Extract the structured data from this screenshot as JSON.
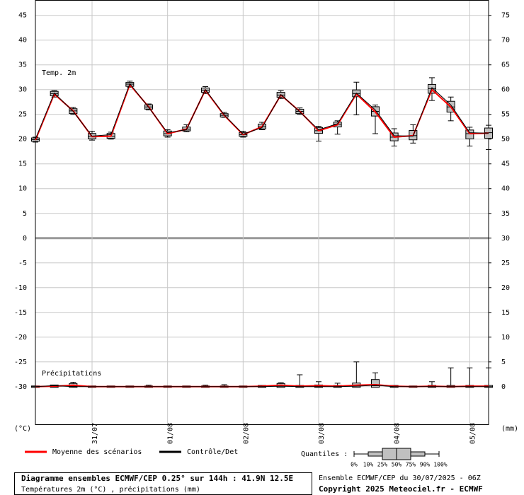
{
  "chart_data": {
    "type": "ensemble",
    "x": [
      0,
      6,
      12,
      18,
      24,
      30,
      36,
      42,
      48,
      54,
      60,
      66,
      72,
      78,
      84,
      90,
      96,
      102,
      108,
      114,
      120,
      126,
      132,
      138,
      144
    ],
    "xlim": [
      0,
      144
    ],
    "xticks": [
      {
        "value": 18,
        "label": "31/07"
      },
      {
        "value": 42,
        "label": "01/08"
      },
      {
        "value": 66,
        "label": "02/08"
      },
      {
        "value": 90,
        "label": "03/08"
      },
      {
        "value": 114,
        "label": "04/08"
      },
      {
        "value": 138,
        "label": "05/08"
      }
    ],
    "ylim": [
      -37.6,
      48.1
    ],
    "yticks": [
      45,
      40,
      35,
      30,
      25,
      20,
      15,
      10,
      5,
      0,
      -5,
      -10,
      -15,
      -20,
      -25,
      -30
    ],
    "y2lim": [
      -7.6,
      78.1
    ],
    "y2ticks": [
      75,
      70,
      65,
      60,
      55,
      50,
      45,
      40,
      35,
      30,
      25,
      20,
      15,
      10,
      5,
      0
    ],
    "y_unit": "(°C)",
    "y2_unit": "(mm)",
    "grid": true,
    "panels": [
      {
        "label": "Temp. 2m",
        "axis": "y",
        "box_color": "#c0c0c0",
        "series": [
          {
            "name": "Moyenne des scénarios",
            "color": "#ff0000",
            "values": [
              19.8,
              29.1,
              25.7,
              20.5,
              20.6,
              31.0,
              26.5,
              21.1,
              22.0,
              29.9,
              24.8,
              20.9,
              22.5,
              28.9,
              25.6,
              21.7,
              22.9,
              29.1,
              25.5,
              20.4,
              20.7,
              30.0,
              26.5,
              21.1,
              21.2
            ]
          },
          {
            "name": "Contrôle/Det",
            "color": "#000000",
            "values": [
              20.0,
              29.3,
              25.6,
              20.6,
              20.9,
              31.2,
              26.4,
              21.3,
              21.9,
              30.0,
              24.9,
              21.0,
              22.3,
              29.0,
              25.5,
              21.9,
              23.1,
              29.3,
              25.9,
              20.7,
              20.6,
              30.4,
              26.9,
              21.3,
              21.2
            ]
          }
        ],
        "q0": [
          19.4,
          28.5,
          25.0,
          19.8,
          20.0,
          30.5,
          25.9,
          20.4,
          21.5,
          29.2,
          24.4,
          20.4,
          21.9,
          28.2,
          25.0,
          19.6,
          21.0,
          24.9,
          21.1,
          18.6,
          19.2,
          27.8,
          23.7,
          18.6,
          17.9
        ],
        "q25": [
          19.7,
          28.9,
          25.3,
          20.2,
          20.3,
          30.8,
          26.2,
          20.8,
          21.8,
          29.6,
          24.6,
          20.7,
          22.2,
          28.6,
          25.3,
          21.3,
          22.6,
          28.7,
          24.8,
          19.8,
          20.0,
          29.4,
          25.6,
          20.2,
          20.3
        ],
        "q50": [
          19.9,
          29.2,
          25.7,
          20.6,
          20.6,
          31.1,
          26.5,
          21.1,
          22.0,
          29.9,
          24.8,
          20.9,
          22.5,
          28.9,
          25.6,
          21.7,
          23.0,
          29.2,
          25.6,
          20.4,
          20.7,
          30.2,
          26.5,
          21.1,
          21.3
        ],
        "q75": [
          20.1,
          29.5,
          26.0,
          21.0,
          21.0,
          31.3,
          26.8,
          21.5,
          22.3,
          30.2,
          25.0,
          21.2,
          22.9,
          29.3,
          25.9,
          22.2,
          23.3,
          29.8,
          26.4,
          21.1,
          21.6,
          30.9,
          27.5,
          21.7,
          22.1
        ],
        "q100": [
          20.4,
          29.8,
          26.4,
          21.6,
          21.4,
          31.7,
          27.1,
          21.9,
          22.9,
          30.6,
          25.4,
          21.6,
          23.4,
          29.8,
          26.3,
          22.6,
          23.7,
          31.5,
          26.9,
          22.1,
          22.9,
          32.4,
          28.5,
          22.4,
          22.8
        ]
      },
      {
        "label": "Précipitations",
        "axis": "y2",
        "box_color": "#c0c0c0",
        "series": [
          {
            "color": "#ff0000",
            "values": [
              0,
              0.1,
              0.3,
              0,
              0,
              0,
              0,
              0,
              0,
              0,
              0,
              0,
              0.1,
              0.3,
              0.1,
              0.2,
              0.1,
              0.3,
              0.4,
              0.1,
              0,
              0.1,
              0,
              0.1,
              0.1
            ]
          },
          {
            "color": "#000000",
            "values": [
              0,
              0.2,
              0,
              0,
              0,
              0,
              0,
              0,
              0,
              0,
              0,
              0,
              0,
              0.1,
              0,
              0,
              0,
              0.1,
              0.3,
              0,
              0,
              0,
              0,
              0,
              0
            ]
          }
        ],
        "q0": [
          0,
          0,
          0,
          0,
          0,
          0,
          0,
          0,
          0,
          0,
          0,
          0,
          0,
          0,
          0,
          0,
          0,
          0,
          0,
          0,
          0,
          0,
          0,
          0,
          0
        ],
        "q25": [
          0,
          0,
          0,
          0,
          0,
          0,
          0,
          0,
          0,
          0,
          0,
          0,
          0,
          0,
          0,
          0,
          0,
          0,
          0,
          0,
          0,
          0,
          0,
          0,
          0
        ],
        "q50": [
          0,
          0,
          0.1,
          0,
          0,
          0,
          0,
          0,
          0,
          0,
          0,
          0,
          0,
          0.1,
          0,
          0,
          0,
          0.1,
          0.2,
          0,
          0,
          0,
          0,
          0,
          0
        ],
        "q75": [
          0,
          0.2,
          0.5,
          0,
          0,
          0,
          0,
          0,
          0,
          0,
          0,
          0,
          0.1,
          0.5,
          0.1,
          0.2,
          0.1,
          0.6,
          1.3,
          0.1,
          0,
          0.1,
          0.1,
          0.1,
          0.1
        ],
        "q100": [
          0,
          0.3,
          0.9,
          0,
          0,
          0,
          0.3,
          0,
          0,
          0.3,
          0.4,
          0,
          0.2,
          0.8,
          2.4,
          1.0,
          0.7,
          5.0,
          2.8,
          0.2,
          0,
          1.0,
          3.8,
          3.8,
          3.8
        ]
      }
    ],
    "quantile_key": {
      "label": "Quantiles :",
      "labels": [
        "0%",
        "10%",
        "25%",
        "50%",
        "75%",
        "90%",
        "100%"
      ]
    },
    "footer": {
      "title": "Diagramme ensembles ECMWF/CEP 0.25° sur 144h : 41.9N 12.5E",
      "subtitle": "Températures 2m (°C) , précipitations (mm)",
      "run": "Ensemble ECMWF/CEP du 30/07/2025 - 06Z",
      "copyright": "Copyright 2025 Meteociel.fr - ECMWF"
    }
  }
}
